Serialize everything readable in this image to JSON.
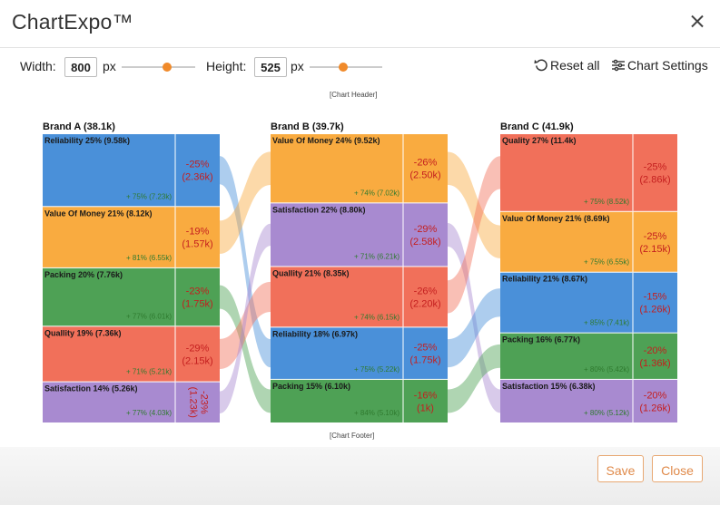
{
  "app": {
    "title": "ChartExpo™"
  },
  "controls": {
    "width_label": "Width:",
    "width_value": "800",
    "width_unit": "px",
    "height_label": "Height:",
    "height_value": "525",
    "height_unit": "px",
    "reset_label": "Reset all",
    "settings_label": "Chart Settings"
  },
  "chart": {
    "header_caption": "[Chart Header]",
    "footer_caption": "[Chart Footer]"
  },
  "footer": {
    "save_label": "Save",
    "close_label": "Close"
  },
  "colors": {
    "accent": "#f08a2a",
    "blue": "#4a90d9",
    "orange": "#f9ab40",
    "green": "#4ea155",
    "red": "#f1705a",
    "purple": "#a88ad0",
    "gain_text": "#2f7a2f",
    "loss_text": "#c41f1f"
  },
  "chart_data": {
    "type": "sankey",
    "columns": [
      {
        "title": "Brand A (38.1k)",
        "nodes": [
          {
            "label": "Reliability 25% (9.58k)",
            "gain": "+ 75% (7.23k)",
            "loss": "-25%",
            "loss_value": "(2.36k)",
            "color": "blue",
            "share": 25
          },
          {
            "label": "Value Of Money 21% (8.12k)",
            "gain": "+ 81% (6.55k)",
            "loss": "-19%",
            "loss_value": "(1.57k)",
            "color": "orange",
            "share": 21
          },
          {
            "label": "Packing 20% (7.76k)",
            "gain": "+ 77% (6.01k)",
            "loss": "-23%",
            "loss_value": "(1.75k)",
            "color": "green",
            "share": 20
          },
          {
            "label": "Quallity 19% (7.36k)",
            "gain": "+ 71% (5.21k)",
            "loss": "-29%",
            "loss_value": "(2.15k)",
            "color": "red",
            "share": 19
          },
          {
            "label": "Satisfaction 14% (5.26k)",
            "gain": "+ 77% (4.03k)",
            "loss": "-23%",
            "loss_value": "(1.23k)",
            "color": "purple",
            "share": 14
          }
        ]
      },
      {
        "title": "Brand B (39.7k)",
        "nodes": [
          {
            "label": "Value Of Money 24% (9.52k)",
            "gain": "+ 74% (7.02k)",
            "loss": "-26%",
            "loss_value": "(2.50k)",
            "color": "orange",
            "share": 24
          },
          {
            "label": "Satisfaction 22% (8.80k)",
            "gain": "+ 71% (6.21k)",
            "loss": "-29%",
            "loss_value": "(2.58k)",
            "color": "purple",
            "share": 22
          },
          {
            "label": "Quallity 21% (8.35k)",
            "gain": "+ 74% (6.15k)",
            "loss": "-26%",
            "loss_value": "(2.20k)",
            "color": "red",
            "share": 21
          },
          {
            "label": "Reliability 18% (6.97k)",
            "gain": "+ 75% (5.22k)",
            "loss": "-25%",
            "loss_value": "(1.75k)",
            "color": "blue",
            "share": 18
          },
          {
            "label": "Packing 15% (6.10k)",
            "gain": "+ 84% (5.10k)",
            "loss": "-16%",
            "loss_value": "(1k)",
            "color": "green",
            "share": 15
          }
        ]
      },
      {
        "title": "Brand C (41.9k)",
        "nodes": [
          {
            "label": "Quality 27% (11.4k)",
            "gain": "+ 75% (8.52k)",
            "loss": "-25%",
            "loss_value": "(2.86k)",
            "color": "red",
            "share": 27
          },
          {
            "label": "Value Of Money 21% (8.69k)",
            "gain": "+ 75% (6.55k)",
            "loss": "-25%",
            "loss_value": "(2.15k)",
            "color": "orange",
            "share": 21
          },
          {
            "label": "Reliability 21% (8.67k)",
            "gain": "+ 85% (7.41k)",
            "loss": "-15%",
            "loss_value": "(1.26k)",
            "color": "blue",
            "share": 21
          },
          {
            "label": "Packing 16% (6.77k)",
            "gain": "+ 80% (5.42k)",
            "loss": "-20%",
            "loss_value": "(1.36k)",
            "color": "green",
            "share": 16
          },
          {
            "label": "Satisfaction 15% (6.38k)",
            "gain": "+ 80% (5.12k)",
            "loss": "-20%",
            "loss_value": "(1.26k)",
            "color": "purple",
            "share": 15
          }
        ]
      }
    ],
    "links": [
      {
        "from": [
          0,
          0
        ],
        "to": [
          1,
          3
        ]
      },
      {
        "from": [
          0,
          1
        ],
        "to": [
          1,
          0
        ]
      },
      {
        "from": [
          0,
          2
        ],
        "to": [
          1,
          4
        ]
      },
      {
        "from": [
          0,
          3
        ],
        "to": [
          1,
          2
        ]
      },
      {
        "from": [
          0,
          4
        ],
        "to": [
          1,
          1
        ]
      },
      {
        "from": [
          1,
          0
        ],
        "to": [
          2,
          1
        ]
      },
      {
        "from": [
          1,
          1
        ],
        "to": [
          2,
          4
        ]
      },
      {
        "from": [
          1,
          2
        ],
        "to": [
          2,
          0
        ]
      },
      {
        "from": [
          1,
          3
        ],
        "to": [
          2,
          2
        ]
      },
      {
        "from": [
          1,
          4
        ],
        "to": [
          2,
          3
        ]
      }
    ]
  }
}
